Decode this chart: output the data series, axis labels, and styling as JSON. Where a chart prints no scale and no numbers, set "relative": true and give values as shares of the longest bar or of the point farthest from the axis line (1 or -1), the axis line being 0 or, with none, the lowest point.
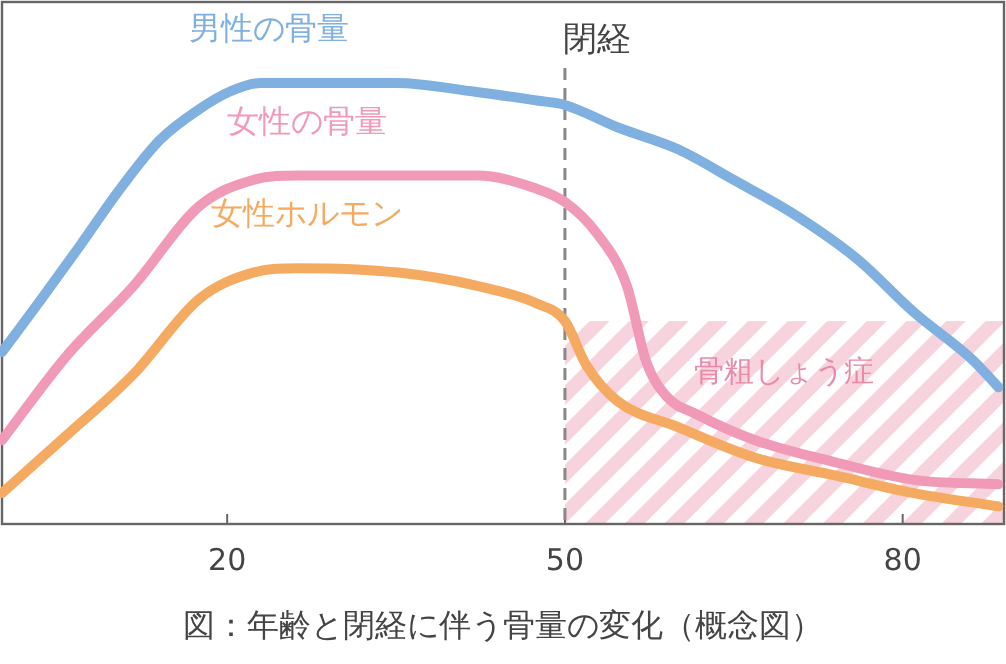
{
  "chart_data": {
    "type": "line",
    "relative": true,
    "xlim": [
      0,
      89
    ],
    "xticks": [
      20,
      50,
      80
    ],
    "series": [
      {
        "name": "男性の骨量",
        "color": "#7fb0e0",
        "x": [
          0,
          3.5,
          6.9,
          10.5,
          14,
          17.5,
          20.2,
          23,
          28,
          35,
          42,
          47.5,
          50,
          54.6,
          60,
          65,
          70.5,
          76,
          81,
          86.3,
          88.5
        ],
        "values": [
          0.39,
          0.51,
          0.63,
          0.76,
          0.87,
          0.94,
          0.98,
          1.0,
          1.0,
          1.0,
          0.98,
          0.96,
          0.95,
          0.9,
          0.85,
          0.78,
          0.7,
          0.6,
          0.48,
          0.37,
          0.31
        ]
      },
      {
        "name": "女性の骨量",
        "color": "#f09ab8",
        "x": [
          0,
          5.7,
          11.7,
          17.5,
          22.3,
          26.4,
          35.2,
          42.2,
          47.5,
          50,
          52.8,
          55.5,
          57.2,
          59,
          61.6,
          66.9,
          74,
          81,
          88.5
        ],
        "values": [
          0.19,
          0.38,
          0.54,
          0.72,
          0.78,
          0.79,
          0.79,
          0.79,
          0.76,
          0.73,
          0.66,
          0.54,
          0.37,
          0.29,
          0.25,
          0.19,
          0.14,
          0.1,
          0.09
        ]
      },
      {
        "name": "女性ホルモン",
        "color": "#f5aa62",
        "x": [
          0,
          5.7,
          11.7,
          17.5,
          22.3,
          26.4,
          35.2,
          42.2,
          47.5,
          50,
          51.9,
          54.6,
          60,
          66.9,
          74,
          81,
          88.5
        ],
        "values": [
          0.07,
          0.2,
          0.34,
          0.51,
          0.57,
          0.58,
          0.57,
          0.54,
          0.5,
          0.46,
          0.36,
          0.28,
          0.22,
          0.15,
          0.11,
          0.07,
          0.04
        ]
      }
    ],
    "ref_lines": [
      {
        "axis": "x",
        "value": 50,
        "label": "閉経",
        "color": "#888888",
        "line_style": "dashed"
      }
    ],
    "bands": [
      {
        "axis": "x",
        "from": 50,
        "to": 89,
        "label": "骨粗しょう症",
        "color": "#f7d3dd"
      }
    ],
    "annotations": [
      "図：年齢と閉経に伴う骨量の変化（概念図）"
    ]
  }
}
